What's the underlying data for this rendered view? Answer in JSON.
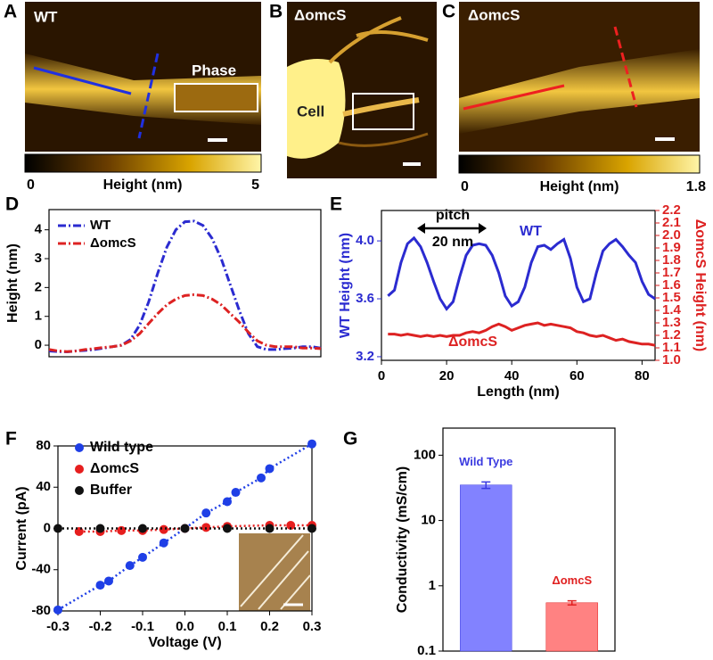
{
  "image_panels": [
    {
      "panel": "A",
      "label": "WT",
      "inset": "Phase",
      "colorbar": {
        "label": "Height (nm)",
        "min": 0,
        "max": 5
      }
    },
    {
      "panel": "B",
      "label": "ΔomcS",
      "inset": "Cell"
    },
    {
      "panel": "C",
      "label": "ΔomcS",
      "colorbar": {
        "label": "Height (nm)",
        "min": 0,
        "max": 1.8
      }
    }
  ],
  "chart_data": [
    {
      "panel": "D",
      "type": "line",
      "ylabel": "Height (nm)",
      "line_style": "dashdot",
      "legend": "upper left",
      "x": [
        0,
        1,
        2,
        3,
        4,
        5,
        6,
        7,
        8,
        9,
        10,
        11,
        12,
        13,
        14,
        15,
        16,
        17,
        18,
        19,
        20,
        21,
        22,
        23,
        24,
        25,
        26,
        27,
        28,
        29,
        30
      ],
      "xlim": [
        0,
        30
      ],
      "ylim": [
        -0.4,
        4.7
      ],
      "yticks": [
        0,
        1,
        2,
        3,
        4
      ],
      "series": [
        {
          "name": "WT",
          "color": "#2b2bd0",
          "values": [
            -0.2,
            -0.22,
            -0.23,
            -0.2,
            -0.18,
            -0.15,
            -0.1,
            -0.05,
            0,
            0.2,
            0.7,
            1.5,
            2.5,
            3.4,
            4.0,
            4.28,
            4.3,
            4.15,
            3.7,
            3.0,
            2.1,
            1.2,
            0.4,
            -0.05,
            -0.15,
            -0.15,
            -0.12,
            -0.1,
            -0.05,
            -0.05,
            -0.1
          ]
        },
        {
          "name": "ΔomcS",
          "color": "#dd2222",
          "values": [
            -0.15,
            -0.2,
            -0.22,
            -0.2,
            -0.15,
            -0.12,
            -0.08,
            -0.05,
            0,
            0.15,
            0.4,
            0.75,
            1.1,
            1.4,
            1.6,
            1.72,
            1.75,
            1.72,
            1.6,
            1.4,
            1.1,
            0.8,
            0.45,
            0.15,
            0,
            -0.05,
            -0.05,
            -0.05,
            -0.1,
            -0.1,
            -0.12
          ]
        }
      ]
    },
    {
      "panel": "E",
      "type": "line",
      "xlabel": "Length (nm)",
      "ylabel": "WT Height (nm)",
      "y2label": "ΔomcS Height (nm)",
      "line_style": "solid",
      "legend": "inline",
      "annotations": [
        "pitch",
        "20 nm"
      ],
      "x": [
        2,
        4,
        6,
        8,
        10,
        12,
        14,
        16,
        18,
        20,
        22,
        24,
        26,
        28,
        30,
        32,
        34,
        36,
        38,
        40,
        42,
        44,
        46,
        48,
        50,
        52,
        54,
        56,
        58,
        60,
        62,
        64,
        66,
        68,
        70,
        72,
        74,
        76,
        78,
        80,
        82,
        84
      ],
      "xlim": [
        0,
        84
      ],
      "xticks": [
        0,
        20,
        40,
        60,
        80
      ],
      "ylim": [
        3.175,
        4.21
      ],
      "yticks": [
        3.2,
        3.6,
        {
          "value": 4,
          "label": "4.0"
        }
      ],
      "y2lim": [
        1,
        2.2
      ],
      "y2ticks": [
        {
          "value": 1,
          "label": "1.0"
        },
        1.1,
        1.2,
        1.3,
        1.4,
        1.5,
        1.6,
        1.7,
        1.8,
        1.9,
        {
          "value": 2,
          "label": "2.0"
        },
        2.1,
        2.2
      ],
      "series": [
        {
          "name": "WT",
          "color": "#2b2bd0",
          "values": [
            3.62,
            3.66,
            3.85,
            3.98,
            4.02,
            3.96,
            3.85,
            3.72,
            3.6,
            3.53,
            3.58,
            3.75,
            3.9,
            3.97,
            3.98,
            3.97,
            3.9,
            3.78,
            3.62,
            3.55,
            3.58,
            3.68,
            3.85,
            3.96,
            3.97,
            3.94,
            3.98,
            4.01,
            3.88,
            3.68,
            3.58,
            3.6,
            3.78,
            3.93,
            3.98,
            4.01,
            3.96,
            3.9,
            3.85,
            3.72,
            3.63,
            3.6
          ]
        },
        {
          "name": "ΔomcS",
          "color": "#dd2222",
          "axis": "y2",
          "values": [
            1.21,
            1.21,
            1.2,
            1.21,
            1.2,
            1.19,
            1.2,
            1.19,
            1.2,
            1.19,
            1.2,
            1.2,
            1.22,
            1.23,
            1.22,
            1.24,
            1.27,
            1.29,
            1.27,
            1.24,
            1.26,
            1.28,
            1.29,
            1.3,
            1.28,
            1.29,
            1.28,
            1.27,
            1.26,
            1.23,
            1.22,
            1.2,
            1.19,
            1.2,
            1.18,
            1.16,
            1.17,
            1.15,
            1.14,
            1.13,
            1.13,
            1.12
          ]
        }
      ]
    },
    {
      "panel": "F",
      "type": "scatter",
      "xlabel": "Voltage (V)",
      "ylabel": "Current (pA)",
      "legend": "upper left",
      "xlim": [
        -0.3,
        0.3
      ],
      "xticks": [
        -0.3,
        -0.2,
        -0.1,
        {
          "value": 0,
          "label": "0.0"
        },
        0.1,
        0.2,
        0.3
      ],
      "ylim": [
        -80,
        80
      ],
      "yticks": [
        -80,
        -40,
        0,
        40,
        80
      ],
      "series": [
        {
          "name": "Wild type",
          "color": "#1f3fe6",
          "x": [
            -0.3,
            -0.2,
            -0.18,
            -0.13,
            -0.1,
            -0.05,
            0,
            0.05,
            0.1,
            0.12,
            0.18,
            0.2,
            0.3
          ],
          "values": [
            -79,
            -55,
            -51,
            -36,
            -28,
            -14,
            0,
            15,
            26,
            35,
            49,
            58,
            82
          ]
        },
        {
          "name": "ΔomcS",
          "color": "#e61e1e",
          "x": [
            -0.25,
            -0.2,
            -0.15,
            -0.1,
            -0.05,
            0,
            0.05,
            0.1,
            0.2,
            0.25,
            0.3
          ],
          "values": [
            -3,
            -3,
            -2,
            -2,
            -1,
            0,
            1,
            2,
            3,
            3,
            3
          ]
        },
        {
          "name": "Buffer",
          "color": "#111111",
          "x": [
            -0.3,
            -0.2,
            -0.1,
            0,
            0.1,
            0.2,
            0.3
          ],
          "values": [
            0,
            0,
            0,
            0,
            0,
            0,
            0
          ]
        }
      ]
    },
    {
      "panel": "G",
      "type": "bar",
      "ylabel": "Conductivity (mS/cm)",
      "log_scale": true,
      "categories": [
        "Wild Type",
        "ΔomcS"
      ],
      "values": [
        35,
        0.55
      ],
      "errors": [
        4,
        0.04
      ],
      "colors": [
        "#8282ff",
        "#ff8282"
      ],
      "label_colors": [
        "#3a3ae0",
        "#e02020"
      ],
      "ylim": [
        0.1,
        260
      ],
      "yticks": [
        0.1,
        1,
        10,
        100
      ]
    }
  ]
}
